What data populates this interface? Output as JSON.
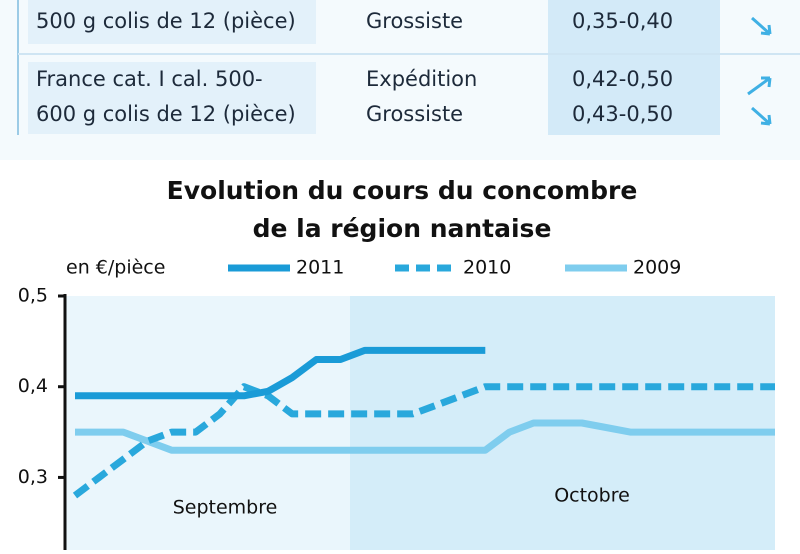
{
  "table": {
    "rows": [
      {
        "product": [
          "500 g colis de 12 (pièce)"
        ],
        "stages": [
          "Grossiste"
        ],
        "prices": [
          "0,35-0,40"
        ]
      },
      {
        "product": [
          "France cat. I cal. 500-",
          "600 g colis de 12 (pièce)"
        ],
        "stages": [
          "Expédition",
          "Grossiste"
        ],
        "prices": [
          "0,42-0,50",
          "0,43-0,50"
        ]
      }
    ]
  },
  "chart_data": {
    "type": "line",
    "title": [
      "Evolution du cours du concombre",
      "de la région nantaise"
    ],
    "y_label": "en €/pièce",
    "months": [
      "Septembre",
      "Octobre"
    ],
    "categories": [
      null,
      null,
      null,
      null,
      null,
      null,
      null,
      null,
      null,
      null,
      null,
      null,
      null,
      null,
      null,
      null,
      null,
      null,
      null,
      null,
      null,
      null,
      null,
      null,
      null,
      null,
      null,
      null,
      null,
      null
    ],
    "ylim": [
      0.22,
      0.5
    ],
    "yticks": [
      {
        "value": 0.3,
        "label": "0,3"
      },
      {
        "value": 0.4,
        "label": "0,4"
      },
      {
        "value": 0.5,
        "label": "0,5"
      }
    ],
    "series": [
      {
        "name": "2011",
        "color": "#1a9bd7",
        "dash": false,
        "values": [
          0.39,
          0.39,
          0.39,
          0.39,
          0.39,
          0.39,
          0.39,
          0.39,
          0.395,
          0.41,
          0.43,
          0.43,
          0.44,
          0.44,
          0.44,
          0.44,
          0.44,
          0.44,
          null,
          null,
          null,
          null,
          null,
          null,
          null,
          null,
          null,
          null,
          null,
          null
        ]
      },
      {
        "name": "2010",
        "color": "#29a8dc",
        "dash": true,
        "values": [
          0.28,
          0.3,
          0.32,
          0.34,
          0.35,
          0.35,
          0.37,
          0.4,
          0.39,
          0.37,
          0.37,
          0.37,
          0.37,
          0.37,
          0.37,
          0.38,
          0.39,
          0.4,
          0.4,
          0.4,
          0.4,
          0.4,
          0.4,
          0.4,
          0.4,
          0.4,
          0.4,
          0.4,
          0.4,
          0.4
        ]
      },
      {
        "name": "2009",
        "color": "#7fcdee",
        "dash": false,
        "values": [
          0.35,
          0.35,
          0.35,
          0.34,
          0.33,
          0.33,
          0.33,
          0.33,
          0.33,
          0.33,
          0.33,
          0.33,
          0.33,
          0.33,
          0.33,
          0.33,
          0.33,
          0.33,
          0.35,
          0.36,
          0.36,
          0.36,
          0.355,
          0.35,
          0.35,
          0.35,
          0.35,
          0.35,
          0.35,
          0.35
        ]
      }
    ]
  }
}
